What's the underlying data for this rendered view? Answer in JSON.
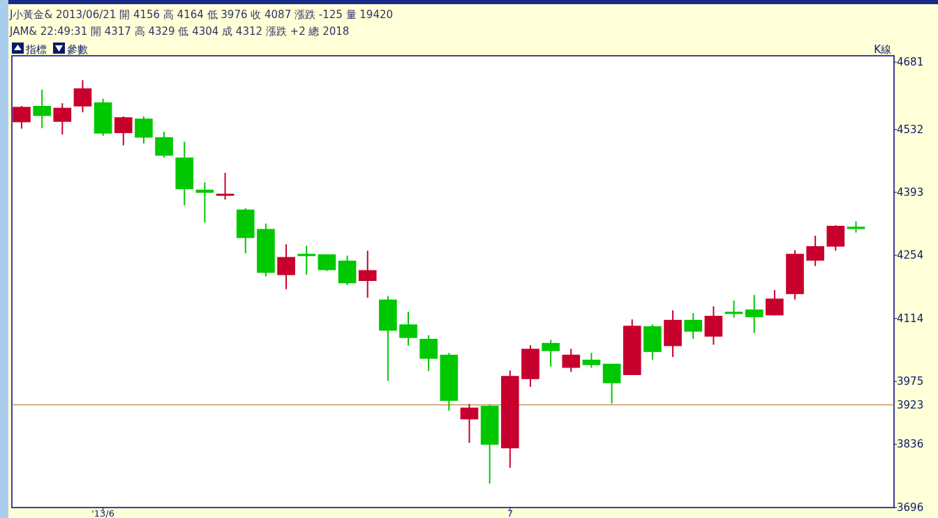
{
  "chart_data": {
    "type": "candlestick",
    "title": "K線",
    "annotations": [
      "J小黃金& 2013/06/21 開 4156 高 4164 低 3976 收 4087 漲跌 -125 量 19420",
      "JAM&      22:49:31    開 4317 高 4329 低 4304 成 4312 漲跌 +2     總 2018",
      "指標",
      "參數"
    ],
    "categories": [
      null,
      null,
      null,
      null,
      "'13/6",
      null,
      null,
      null,
      null,
      null,
      null,
      null,
      null,
      null,
      null,
      null,
      null,
      null,
      null,
      null,
      null,
      null,
      null,
      null,
      "7",
      null,
      null,
      null,
      null,
      null,
      null,
      null,
      null,
      null,
      null,
      null,
      null,
      null,
      null,
      null,
      null,
      null
    ],
    "ohlc": [
      [
        4548,
        4584,
        4534,
        4582
      ],
      [
        4584,
        4620,
        4535,
        4562
      ],
      [
        4549,
        4590,
        4521,
        4580
      ],
      [
        4583,
        4641,
        4570,
        4623
      ],
      [
        4592,
        4600,
        4518,
        4523
      ],
      [
        4524,
        4561,
        4497,
        4559
      ],
      [
        4556,
        4561,
        4501,
        4514
      ],
      [
        4515,
        4527,
        4470,
        4474
      ],
      [
        4470,
        4505,
        4364,
        4400
      ],
      [
        4399,
        4415,
        4326,
        4392
      ],
      [
        4388,
        4436,
        4377,
        4390
      ],
      [
        4355,
        4358,
        4258,
        4292
      ],
      [
        4312,
        4324,
        4207,
        4215
      ],
      [
        4210,
        4278,
        4179,
        4250
      ],
      [
        4257,
        4275,
        4211,
        4252
      ],
      [
        4256,
        4256,
        4219,
        4221
      ],
      [
        4242,
        4253,
        4188,
        4192
      ],
      [
        4197,
        4264,
        4160,
        4221
      ],
      [
        4156,
        4164,
        3976,
        4087
      ],
      [
        4101,
        4129,
        4054,
        4071
      ],
      [
        4069,
        4077,
        3998,
        4025
      ],
      [
        4034,
        4038,
        3910,
        3932
      ],
      [
        3891,
        3925,
        3839,
        3917
      ],
      [
        3921,
        3924,
        3749,
        3835
      ],
      [
        3827,
        3999,
        3784,
        3987
      ],
      [
        3980,
        4055,
        3963,
        4047
      ],
      [
        4060,
        4067,
        4008,
        4042
      ],
      [
        4005,
        4047,
        3996,
        4034
      ],
      [
        4023,
        4038,
        4005,
        4011
      ],
      [
        4014,
        4014,
        3926,
        3971
      ],
      [
        3989,
        4112,
        3989,
        4098
      ],
      [
        4097,
        4101,
        4023,
        4040
      ],
      [
        4053,
        4132,
        4029,
        4111
      ],
      [
        4111,
        4126,
        4069,
        4085
      ],
      [
        4074,
        4141,
        4056,
        4120
      ],
      [
        4129,
        4154,
        4116,
        4124
      ],
      [
        4134,
        4166,
        4082,
        4117
      ],
      [
        4121,
        4177,
        4121,
        4158
      ],
      [
        4168,
        4265,
        4156,
        4257
      ],
      [
        4242,
        4297,
        4230,
        4274
      ],
      [
        4273,
        4320,
        4264,
        4319
      ],
      [
        4317,
        4329,
        4304,
        4312
      ]
    ],
    "colors": [
      "#c8002d",
      "#00c800",
      "#c8002d",
      "#c8002d",
      "#00c800",
      "#c8002d",
      "#00c800",
      "#00c800",
      "#00c800",
      "#00c800",
      "#c8002d",
      "#00c800",
      "#00c800",
      "#c8002d",
      "#00c800",
      "#00c800",
      "#00c800",
      "#c8002d",
      "#00c800",
      "#00c800",
      "#00c800",
      "#00c800",
      "#c8002d",
      "#00c800",
      "#c8002d",
      "#c8002d",
      "#00c800",
      "#c8002d",
      "#00c800",
      "#00c800",
      "#c8002d",
      "#00c800",
      "#c8002d",
      "#00c800",
      "#c8002d",
      "#00c800",
      "#00c800",
      "#c8002d",
      "#c8002d",
      "#c8002d",
      "#c8002d",
      "#00c800"
    ],
    "ylim": [
      3696,
      4695
    ],
    "yticks": [
      3696,
      3836,
      3975,
      4114,
      4254,
      4393,
      4532,
      4681
    ],
    "ref_lines": [
      {
        "axis": "y",
        "value": 3923,
        "label": "3923",
        "color": "#b06a10"
      }
    ],
    "grid": false
  }
}
